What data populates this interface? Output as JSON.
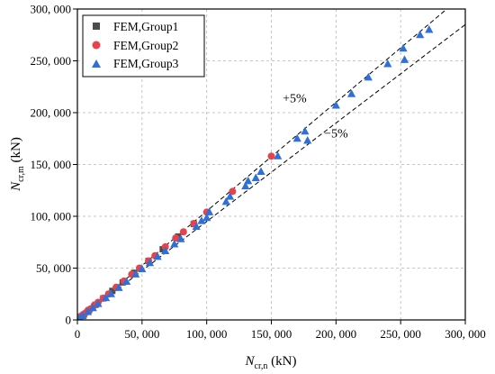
{
  "chart_data": {
    "type": "scatter",
    "xlabel": {
      "main": "N",
      "sub": "cr,n",
      "unit": " (kN)"
    },
    "ylabel": {
      "main": "N",
      "sub": "cr,m",
      "unit": " (kN)"
    },
    "xlim": [
      0,
      300000
    ],
    "ylim": [
      0,
      300000
    ],
    "xticks": [
      0,
      50000,
      100000,
      150000,
      200000,
      250000,
      300000
    ],
    "yticks": [
      0,
      50000,
      100000,
      150000,
      200000,
      250000,
      300000
    ],
    "xtick_labels": [
      "0",
      "50, 000",
      "100, 000",
      "150, 000",
      "200, 000",
      "250, 000",
      "300, 000"
    ],
    "ytick_labels": [
      "0",
      "50, 000",
      "100, 000",
      "150, 000",
      "200, 000",
      "250, 000",
      "300, 000"
    ],
    "grid": true,
    "legend_position": "top-left",
    "reference_lines": [
      {
        "label": "+5%",
        "slope": 1.05
      },
      {
        "label": "−5%",
        "slope": 0.95
      }
    ],
    "series": [
      {
        "name": "FEM,Group1",
        "marker": "square",
        "color": "#4d4d4d",
        "points": [
          [
            2000,
            2100
          ],
          [
            5000,
            5200
          ],
          [
            9000,
            9400
          ],
          [
            14000,
            14600
          ],
          [
            20000,
            20800
          ],
          [
            27000,
            28000
          ],
          [
            35000,
            36200
          ],
          [
            44000,
            45500
          ],
          [
            55000,
            57000
          ],
          [
            66000,
            68200
          ],
          [
            78000,
            80500
          ],
          [
            90000,
            92500
          ]
        ]
      },
      {
        "name": "FEM,Group2",
        "marker": "circle",
        "color": "#e8424a",
        "points": [
          [
            1500,
            1500
          ],
          [
            2500,
            3500
          ],
          [
            4000,
            4500
          ],
          [
            6000,
            6500
          ],
          [
            8000,
            9000
          ],
          [
            10000,
            10500
          ],
          [
            13000,
            14000
          ],
          [
            16000,
            17000
          ],
          [
            20000,
            21000
          ],
          [
            24000,
            25000
          ],
          [
            30000,
            31500
          ],
          [
            36000,
            37500
          ],
          [
            42000,
            44000
          ],
          [
            48000,
            50000
          ],
          [
            55000,
            57000
          ],
          [
            60000,
            62000
          ],
          [
            68000,
            70500
          ],
          [
            76000,
            79000
          ],
          [
            82000,
            85000
          ],
          [
            90000,
            93000
          ],
          [
            100000,
            104000
          ],
          [
            120000,
            124000
          ],
          [
            150000,
            158000
          ]
        ]
      },
      {
        "name": "FEM,Group3",
        "marker": "triangle",
        "color": "#2f6fd6",
        "points": [
          [
            2000,
            1800
          ],
          [
            4000,
            3800
          ],
          [
            8000,
            7700
          ],
          [
            12000,
            11500
          ],
          [
            16000,
            15500
          ],
          [
            22000,
            21200
          ],
          [
            26000,
            25000
          ],
          [
            32000,
            31000
          ],
          [
            38000,
            37000
          ],
          [
            45000,
            44000
          ],
          [
            50000,
            49000
          ],
          [
            56000,
            55000
          ],
          [
            62000,
            61000
          ],
          [
            68000,
            66500
          ],
          [
            75000,
            73000
          ],
          [
            80000,
            78000
          ],
          [
            92000,
            90000
          ],
          [
            96000,
            95500
          ],
          [
            100000,
            98500
          ],
          [
            102000,
            104000
          ],
          [
            115000,
            114000
          ],
          [
            118000,
            119000
          ],
          [
            130000,
            129000
          ],
          [
            132000,
            134000
          ],
          [
            138000,
            137000
          ],
          [
            142000,
            143000
          ],
          [
            155000,
            158000
          ],
          [
            170000,
            175000
          ],
          [
            176000,
            182000
          ],
          [
            178000,
            173000
          ],
          [
            200000,
            207000
          ],
          [
            212000,
            218000
          ],
          [
            225000,
            234000
          ],
          [
            240000,
            247000
          ],
          [
            252000,
            262000
          ],
          [
            253000,
            251000
          ],
          [
            265000,
            275000
          ],
          [
            272000,
            280000
          ]
        ]
      }
    ]
  }
}
